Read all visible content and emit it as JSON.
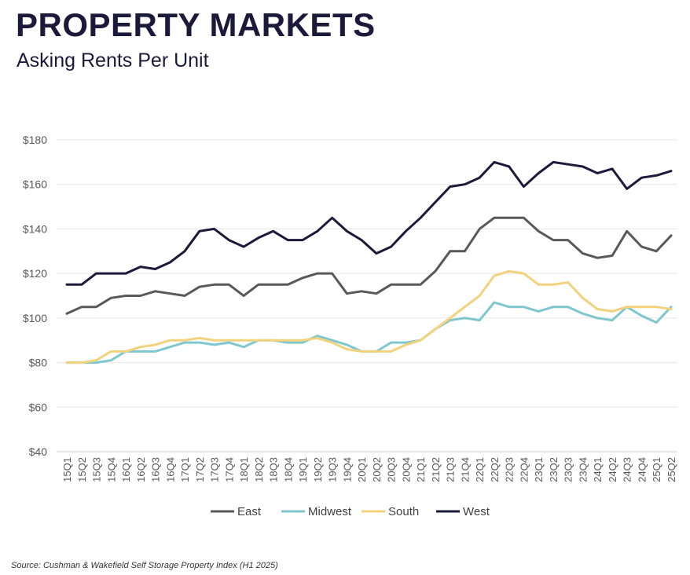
{
  "header": {
    "title": "PROPERTY MARKETS",
    "subtitle": "Asking Rents Per Unit"
  },
  "footer": {
    "source": "Source: Cushman & Wakefield Self Storage Property Index (H1 2025)"
  },
  "chart_data": {
    "type": "line",
    "title": "Asking Rents Per Unit",
    "xlabel": "",
    "ylabel": "",
    "ylim": [
      40,
      180
    ],
    "yticks": [
      40,
      60,
      80,
      100,
      120,
      140,
      160,
      180
    ],
    "ytick_labels": [
      "$40",
      "$60",
      "$80",
      "$100",
      "$120",
      "$140",
      "$160",
      "$180"
    ],
    "grid": true,
    "legend_position": "bottom",
    "categories": [
      "15Q1",
      "15Q2",
      "15Q3",
      "15Q4",
      "16Q1",
      "16Q2",
      "16Q3",
      "16Q4",
      "17Q1",
      "17Q2",
      "17Q3",
      "17Q4",
      "18Q1",
      "18Q2",
      "18Q3",
      "18Q4",
      "19Q1",
      "19Q2",
      "19Q3",
      "19Q4",
      "20Q1",
      "20Q2",
      "20Q3",
      "20Q4",
      "21Q1",
      "21Q2",
      "21Q3",
      "21Q4",
      "22Q1",
      "22Q2",
      "22Q3",
      "22Q4",
      "23Q1",
      "23Q2",
      "23Q3",
      "23Q4",
      "24Q1",
      "24Q2",
      "24Q3",
      "24Q4",
      "25Q1",
      "25Q2"
    ],
    "series": [
      {
        "name": "East",
        "color": "#595959",
        "values": [
          102,
          105,
          105,
          109,
          110,
          110,
          112,
          111,
          110,
          114,
          115,
          115,
          110,
          115,
          115,
          115,
          118,
          120,
          120,
          111,
          112,
          111,
          115,
          115,
          115,
          121,
          130,
          130,
          140,
          145,
          145,
          145,
          139,
          135,
          135,
          129,
          127,
          128,
          139,
          132,
          130,
          137
        ]
      },
      {
        "name": "Midwest",
        "color": "#7fc7cf",
        "values": [
          80,
          80,
          80,
          81,
          85,
          85,
          85,
          87,
          89,
          89,
          88,
          89,
          87,
          90,
          90,
          89,
          89,
          92,
          90,
          88,
          85,
          85,
          89,
          89,
          90,
          95,
          99,
          100,
          99,
          107,
          105,
          105,
          103,
          105,
          105,
          102,
          100,
          99,
          105,
          101,
          98,
          105
        ]
      },
      {
        "name": "South",
        "color": "#f2d27c",
        "values": [
          80,
          80,
          81,
          85,
          85,
          87,
          88,
          90,
          90,
          91,
          90,
          90,
          90,
          90,
          90,
          90,
          90,
          91,
          89,
          86,
          85,
          85,
          85,
          88,
          90,
          95,
          100,
          105,
          110,
          119,
          121,
          120,
          115,
          115,
          116,
          109,
          104,
          103,
          105,
          105,
          105,
          104
        ]
      },
      {
        "name": "West",
        "color": "#1c1a3b",
        "values": [
          115,
          115,
          120,
          120,
          120,
          123,
          122,
          125,
          130,
          139,
          140,
          135,
          132,
          136,
          139,
          135,
          135,
          139,
          145,
          139,
          135,
          129,
          132,
          139,
          145,
          152,
          159,
          160,
          163,
          170,
          168,
          159,
          165,
          170,
          169,
          168,
          165,
          167,
          158,
          163,
          164,
          166
        ]
      }
    ]
  }
}
